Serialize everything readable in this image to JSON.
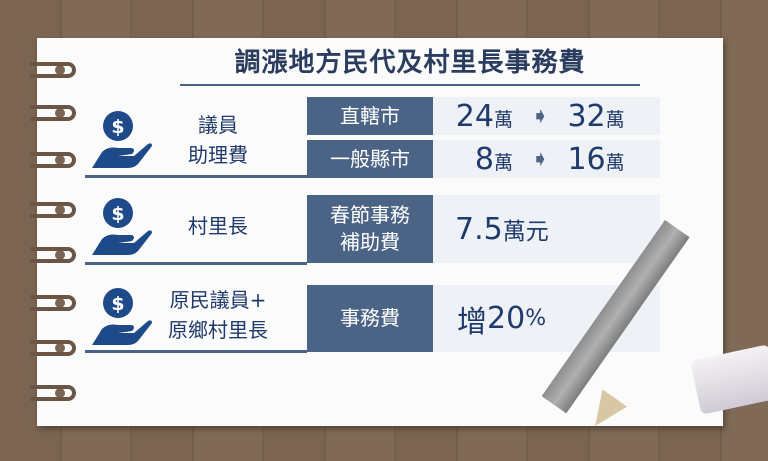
{
  "title": "調漲地方民代及村里長事務費",
  "rows": [
    {
      "label_lines": [
        "議員",
        "助理費"
      ],
      "items": [
        {
          "category": "直轄市",
          "from": "24",
          "from_unit": "萬",
          "to": "32",
          "to_unit": "萬"
        },
        {
          "category": "一般縣市",
          "from": "8",
          "from_unit": "萬",
          "to": "16",
          "to_unit": "萬"
        }
      ]
    },
    {
      "label_lines": [
        "村里長"
      ],
      "category_lines": [
        "春節事務",
        "補助費"
      ],
      "value": "7.5",
      "value_unit": "萬元"
    },
    {
      "label_lines": [
        "原民議員+",
        "原鄉村里長"
      ],
      "category_lines": [
        "事務費"
      ],
      "value_prefix": "增",
      "value": "20",
      "value_unit": "%"
    }
  ],
  "icon": "money-hand-icon",
  "colors": {
    "navy": "#1f3a6b",
    "box": "#4b6485",
    "light": "#eef1f6"
  }
}
